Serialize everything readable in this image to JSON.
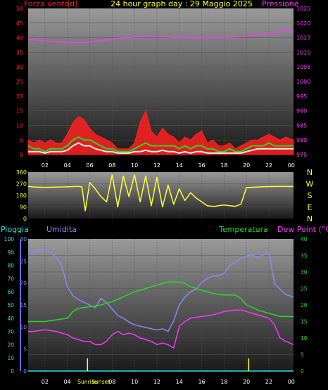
{
  "title": "24 hour graph day : 29 Maggio 2025",
  "colors": {
    "background": "#000000",
    "wind": "#ff2020",
    "gust": "#22dd22",
    "wind_avg": "#f0f0f0",
    "pressure": "#ff33ff",
    "direction": "#ffff33",
    "humidity": "#8888ff",
    "temperature": "#22dd22",
    "dew_point": "#ff33ff",
    "rain": "#33dddd"
  },
  "chart_data": [
    {
      "type": "line",
      "id": "wind-pressure",
      "left_label": "Forza vento",
      "left_unit": "(d)",
      "right_label": "Pressione",
      "y_left_ticks": [
        "0",
        "5",
        "10",
        "15",
        "20",
        "25",
        "30",
        "35",
        "40",
        "45",
        "50"
      ],
      "y_left_range": [
        0,
        50
      ],
      "y_right_ticks": [
        "975",
        "980",
        "985",
        "990",
        "995",
        "1000",
        "1005",
        "1010",
        "1015",
        "1020",
        "1025"
      ],
      "y_right_range": [
        975,
        1025
      ],
      "x_ticks": [
        "02",
        "04",
        "06",
        "08",
        "10",
        "12",
        "14",
        "16",
        "18",
        "20",
        "22",
        "00"
      ],
      "x_range": [
        0.5,
        24.2
      ],
      "series": [
        {
          "key": "pressure",
          "axis": "right",
          "x": [
            0.5,
            1,
            2,
            3,
            4,
            5,
            6,
            7,
            8,
            9,
            10,
            11,
            12,
            13,
            14,
            15,
            16,
            17,
            18,
            19,
            20,
            21,
            22,
            23,
            24.2
          ],
          "y": [
            1014.5,
            1014.2,
            1013.9,
            1013.6,
            1013.4,
            1013.3,
            1013.5,
            1014.0,
            1014.5,
            1014.9,
            1015.2,
            1015.3,
            1015.3,
            1015.2,
            1015.0,
            1015.0,
            1015.0,
            1015.0,
            1015.1,
            1015.2,
            1015.5,
            1016.0,
            1016.5,
            1017.0,
            1017.2
          ]
        },
        {
          "key": "wind",
          "axis": "left",
          "x": [
            0.5,
            1,
            1.5,
            2,
            2.5,
            3,
            3.5,
            4,
            4.5,
            5,
            5.5,
            6,
            6.5,
            7,
            7.5,
            8,
            8.5,
            9,
            9.5,
            10,
            10.5,
            11,
            11.5,
            12,
            12.5,
            13,
            13.5,
            14,
            14.5,
            15,
            15.5,
            16,
            16.5,
            17,
            17.5,
            18,
            18.5,
            19,
            19.5,
            20,
            20.5,
            21,
            21.5,
            22,
            22.5,
            23,
            23.5,
            24.2
          ],
          "y": [
            5,
            4,
            5,
            4,
            5,
            4,
            4,
            7,
            11,
            13,
            12,
            9,
            7,
            6,
            5,
            4,
            2,
            2,
            2,
            4,
            11,
            15,
            8,
            6,
            9,
            7,
            6,
            4,
            6,
            5,
            7,
            8,
            4,
            5,
            3,
            3,
            4,
            2,
            3,
            4,
            5,
            5,
            6,
            7,
            6,
            5,
            6,
            5
          ]
        },
        {
          "key": "gust",
          "axis": "left",
          "x": [
            0.5,
            1,
            1.5,
            2,
            2.5,
            3,
            3.5,
            4,
            4.5,
            5,
            5.5,
            6,
            6.5,
            7,
            7.5,
            8,
            8.5,
            9,
            9.5,
            10,
            10.5,
            11,
            11.5,
            12,
            12.5,
            13,
            13.5,
            14,
            14.5,
            15,
            15.5,
            16,
            16.5,
            17,
            17.5,
            18,
            18.5,
            19,
            19.5,
            20,
            20.5,
            21,
            21.5,
            22,
            22.5,
            23,
            23.5,
            24.2
          ],
          "y": [
            3,
            2,
            2,
            1,
            2,
            2,
            2,
            3,
            5,
            6,
            5,
            5,
            4,
            3,
            2,
            2,
            1,
            1,
            1,
            2,
            3,
            4,
            3,
            3,
            3,
            3,
            3,
            2,
            3,
            2,
            3,
            3,
            2,
            2,
            1,
            1,
            2,
            1,
            1,
            2,
            3,
            3,
            3,
            4,
            3,
            3,
            3,
            3
          ]
        },
        {
          "key": "wind_avg",
          "axis": "left",
          "x": [
            0.5,
            1,
            1.5,
            2,
            2.5,
            3,
            3.5,
            4,
            4.5,
            5,
            5.5,
            6,
            6.5,
            7,
            7.5,
            8,
            8.5,
            9,
            9.5,
            10,
            10.5,
            11,
            11.5,
            12,
            12.5,
            13,
            13.5,
            14,
            14.5,
            15,
            15.5,
            16,
            16.5,
            17,
            17.5,
            18,
            18.5,
            19,
            19.5,
            20,
            20.5,
            21,
            21.5,
            22,
            22.5,
            23,
            23.5,
            24.2
          ],
          "y": [
            1,
            1,
            1,
            0.5,
            1,
            1,
            1,
            1.5,
            3,
            4,
            3,
            3,
            2,
            1.5,
            1,
            1,
            0.5,
            0.5,
            0.5,
            1,
            1,
            1.5,
            1,
            1,
            1.5,
            1,
            1,
            0.5,
            1,
            0.5,
            1,
            1,
            0.5,
            0.5,
            0.5,
            0.5,
            0.5,
            0.5,
            0.5,
            1,
            1.5,
            2,
            2,
            2,
            2,
            2,
            2,
            2
          ]
        }
      ]
    },
    {
      "type": "line",
      "id": "wind-direction",
      "y_left_ticks": [
        "0",
        "90",
        "180",
        "270",
        "360"
      ],
      "y_range": [
        0,
        360
      ],
      "compass_labels": [
        "N",
        "W",
        "S",
        "E",
        "N"
      ],
      "x_range": [
        0.5,
        24.2
      ],
      "series": [
        {
          "key": "direction",
          "x": [
            0.5,
            1,
            2,
            3,
            4,
            5,
            5.3,
            5.6,
            6,
            6.5,
            7,
            7.5,
            8,
            8.5,
            9,
            9.5,
            10,
            10.5,
            11,
            11.5,
            12,
            12.5,
            13,
            13.5,
            14,
            14.5,
            15,
            15.5,
            16,
            16.5,
            17,
            17.2,
            17.5,
            18,
            18.5,
            19,
            19.5,
            20,
            21,
            22,
            23,
            24.2
          ],
          "y": [
            250,
            245,
            242,
            244,
            246,
            250,
            245,
            60,
            280,
            230,
            170,
            130,
            340,
            90,
            330,
            170,
            340,
            130,
            330,
            100,
            320,
            90,
            260,
            110,
            230,
            140,
            200,
            160,
            130,
            100,
            95,
            95,
            100,
            105,
            100,
            95,
            110,
            240,
            245,
            248,
            250,
            248
          ]
        }
      ]
    },
    {
      "type": "line",
      "id": "temp-humidity",
      "rain_label": "Pioggia",
      "humidity_label": "Umidita",
      "temperature_label": "Temperatura",
      "dew_label": "Dew Point (°C)",
      "y_rain_ticks": [
        "0",
        "5",
        "10",
        "15",
        "20",
        "25",
        "30"
      ],
      "y_rain_range": [
        0,
        30
      ],
      "y_humidity_ticks": [
        "0",
        "10",
        "20",
        "30",
        "40",
        "50",
        "60",
        "70",
        "80",
        "90",
        "100"
      ],
      "y_humidity_range": [
        0,
        100
      ],
      "y_temp_ticks": [
        "0",
        "5",
        "10",
        "15",
        "20",
        "25",
        "30",
        "35",
        "40"
      ],
      "y_temp_range": [
        0,
        40
      ],
      "x_ticks": [
        "02",
        "04",
        "06",
        "08",
        "10",
        "12",
        "14",
        "16",
        "18",
        "20",
        "22",
        "00"
      ],
      "x_range": [
        0.5,
        24.2
      ],
      "sun_labels": [
        "Sunrise",
        "Sunset"
      ],
      "sun_hours": [
        5.8,
        20.2
      ],
      "series": [
        {
          "key": "humidity",
          "axis": "humidity",
          "x": [
            0.5,
            1,
            2,
            2.5,
            3,
            3.5,
            4,
            4.5,
            5,
            5.5,
            6,
            6.5,
            7,
            7.5,
            8,
            8.5,
            9,
            9.5,
            10,
            10.5,
            11,
            11.5,
            12,
            12.5,
            13,
            13.5,
            14,
            14.5,
            15,
            15.5,
            16,
            16.5,
            17,
            17.5,
            18,
            18.5,
            19,
            19.5,
            20,
            20.5,
            21,
            21.5,
            22,
            22.5,
            23,
            23.5,
            24.2
          ],
          "y": [
            88,
            90,
            92,
            90,
            86,
            80,
            64,
            57,
            54,
            52,
            50,
            48,
            55,
            52,
            47,
            42,
            40,
            37,
            35,
            34,
            33,
            32,
            31,
            32,
            30,
            38,
            50,
            56,
            60,
            62,
            67,
            70,
            72,
            72,
            74,
            80,
            82,
            85,
            87,
            88,
            86,
            88,
            90,
            66,
            62,
            58,
            56
          ]
        },
        {
          "key": "temperature",
          "axis": "temp",
          "x": [
            0.5,
            1,
            2,
            3,
            4,
            4.5,
            5,
            6,
            7,
            8,
            9,
            10,
            11,
            12,
            13,
            14,
            14.5,
            15,
            16,
            17,
            18,
            19,
            19.5,
            20,
            21,
            22,
            23,
            24.2
          ],
          "y": [
            15,
            15,
            15,
            15.5,
            16,
            18,
            19,
            19.5,
            20,
            21,
            22.5,
            24,
            25,
            26,
            27,
            27,
            26.5,
            25.5,
            24.5,
            23.5,
            23,
            23,
            22,
            20,
            18.5,
            17.5,
            16.5,
            16.5
          ]
        },
        {
          "key": "dew_point",
          "axis": "temp",
          "x": [
            0.5,
            1,
            2,
            3,
            4,
            4.5,
            5,
            5.5,
            6,
            6.5,
            7,
            7.5,
            8,
            8.5,
            9,
            9.5,
            10,
            10.5,
            11,
            11.5,
            12,
            12.5,
            13,
            13.5,
            14,
            14.5,
            15,
            16,
            17,
            18,
            19,
            19.5,
            20,
            20.5,
            21,
            21.5,
            22,
            22.5,
            23,
            23.5,
            24.2
          ],
          "y": [
            12,
            12,
            12.5,
            12,
            11,
            10,
            9.5,
            9,
            9,
            8,
            8,
            9,
            11,
            12,
            11,
            11.5,
            11,
            10,
            9.5,
            9,
            8,
            8.5,
            8,
            7,
            13.5,
            15,
            16,
            16.5,
            17,
            18,
            18.5,
            18.5,
            18,
            17.5,
            17,
            16.5,
            16,
            14,
            10,
            9,
            8
          ]
        },
        {
          "key": "rain",
          "axis": "rain",
          "x": [
            0.5,
            24.2
          ],
          "y": [
            0,
            0
          ]
        }
      ]
    }
  ]
}
